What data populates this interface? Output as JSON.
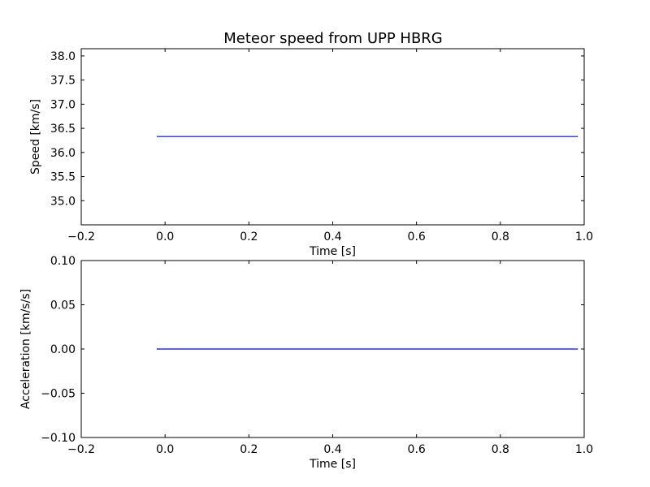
{
  "figure": {
    "title": "Meteor speed from  UPP HBRG"
  },
  "chart_data": [
    {
      "type": "line",
      "title": "Meteor speed from  UPP HBRG",
      "xlabel": "Time [s]",
      "ylabel": "Speed [km/s]",
      "xlim": [
        -0.2,
        1.0
      ],
      "ylim": [
        34.5,
        38.15
      ],
      "xticks": [
        -0.2,
        0.0,
        0.2,
        0.4,
        0.6,
        0.8,
        1.0
      ],
      "xtick_labels": [
        "−0.2",
        "0.0",
        "0.2",
        "0.4",
        "0.6",
        "0.8",
        "1.0"
      ],
      "yticks": [
        35.0,
        35.5,
        36.0,
        36.5,
        37.0,
        37.5,
        38.0
      ],
      "ytick_labels": [
        "35.0",
        "35.5",
        "36.0",
        "36.5",
        "37.0",
        "37.5",
        "38.0"
      ],
      "grid": false,
      "series": [
        {
          "color": "#0000ff",
          "x": [
            -0.02,
            0.985
          ],
          "y": [
            36.33,
            36.33
          ]
        }
      ]
    },
    {
      "type": "line",
      "title": "",
      "xlabel": "Time [s]",
      "ylabel": "Acceleration [km/s/s]",
      "xlim": [
        -0.2,
        1.0
      ],
      "ylim": [
        -0.1,
        0.1
      ],
      "xticks": [
        -0.2,
        0.0,
        0.2,
        0.4,
        0.6,
        0.8,
        1.0
      ],
      "xtick_labels": [
        "−0.2",
        "0.0",
        "0.2",
        "0.4",
        "0.6",
        "0.8",
        "1.0"
      ],
      "yticks": [
        -0.1,
        -0.05,
        0.0,
        0.05,
        0.1
      ],
      "ytick_labels": [
        "−0.10",
        "−0.05",
        "0.00",
        "0.05",
        "0.10"
      ],
      "grid": false,
      "series": [
        {
          "color": "#0000ff",
          "x": [
            -0.02,
            0.985
          ],
          "y": [
            0.0,
            0.0
          ]
        }
      ]
    }
  ]
}
